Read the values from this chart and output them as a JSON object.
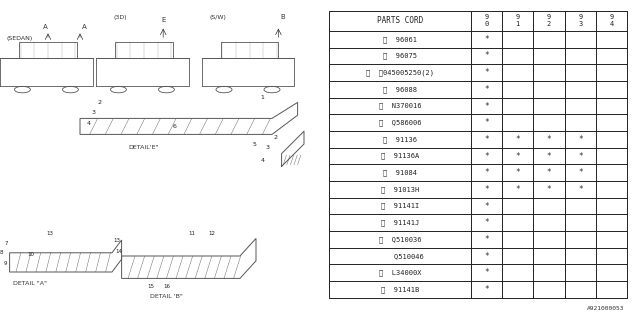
{
  "bg_color": "#ffffff",
  "col_header": [
    "PARTS CORD",
    "9\n0",
    "9\n1",
    "9\n2",
    "9\n3",
    "9\n4"
  ],
  "rows": [
    [
      "①  96061",
      "*",
      "",
      "",
      "",
      ""
    ],
    [
      "②  96075",
      "*",
      "",
      "",
      "",
      ""
    ],
    [
      "③  Ⓢ045005250(2)",
      "*",
      "",
      "",
      "",
      ""
    ],
    [
      "④  96088",
      "*",
      "",
      "",
      "",
      ""
    ],
    [
      "⑤  N370016",
      "*",
      "",
      "",
      "",
      ""
    ],
    [
      "⑥  Q586006",
      "*",
      "",
      "",
      "",
      ""
    ],
    [
      "⑦  91136",
      "*",
      "*",
      "*",
      "*",
      ""
    ],
    [
      "⑧  91136A",
      "*",
      "*",
      "*",
      "*",
      ""
    ],
    [
      "⑨  91084",
      "*",
      "*",
      "*",
      "*",
      ""
    ],
    [
      "⑩  91013H",
      "*",
      "*",
      "*",
      "*",
      ""
    ],
    [
      "⑪  91141I",
      "*",
      "",
      "",
      "",
      ""
    ],
    [
      "⑫  91141J",
      "*",
      "",
      "",
      "",
      ""
    ],
    [
      "⑬  Q510036",
      "*",
      "",
      "",
      "",
      ""
    ],
    [
      "    Q510046",
      "*",
      "",
      "",
      "",
      ""
    ],
    [
      "⑭  L34000X",
      "*",
      "",
      "",
      "",
      ""
    ],
    [
      "⑮  91141B",
      "*",
      "",
      "",
      "",
      ""
    ]
  ],
  "diagram_label": "A921000053",
  "car_color": "#555555",
  "sedan_label": "(SEDAN)",
  "threeD_label": "(3D)",
  "sw_label": "(S/W)",
  "detail_a_label": "DETAIL \"A\"",
  "detail_b_label": "DETAIL 'B\"",
  "detail_e_label": "DETAIL'E\""
}
